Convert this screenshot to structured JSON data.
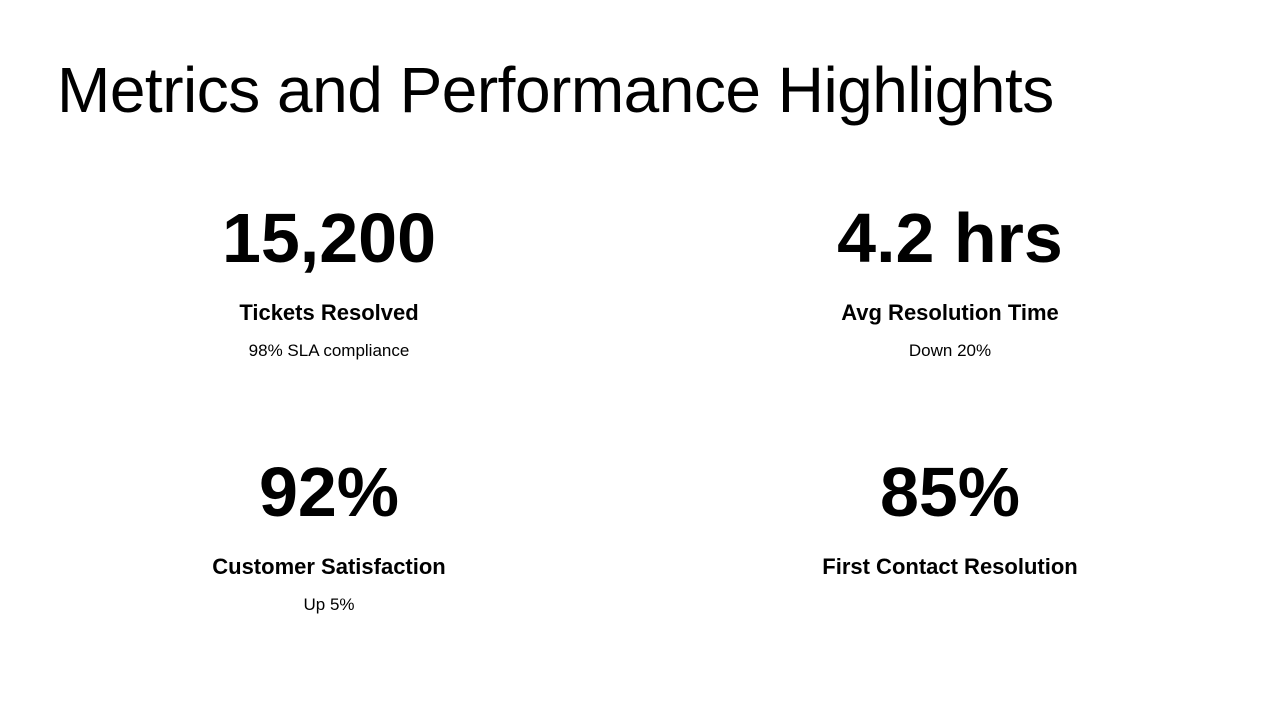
{
  "slide": {
    "title": "Metrics and Performance Highlights",
    "metrics": [
      {
        "value": "15,200",
        "label": "Tickets Resolved",
        "note": "98% SLA compliance"
      },
      {
        "value": "4.2 hrs",
        "label": "Avg Resolution Time",
        "note": "Down 20%"
      },
      {
        "value": "92%",
        "label": "Customer Satisfaction",
        "note": "Up 5%"
      },
      {
        "value": "85%",
        "label": "First Contact Resolution",
        "note": ""
      }
    ]
  }
}
